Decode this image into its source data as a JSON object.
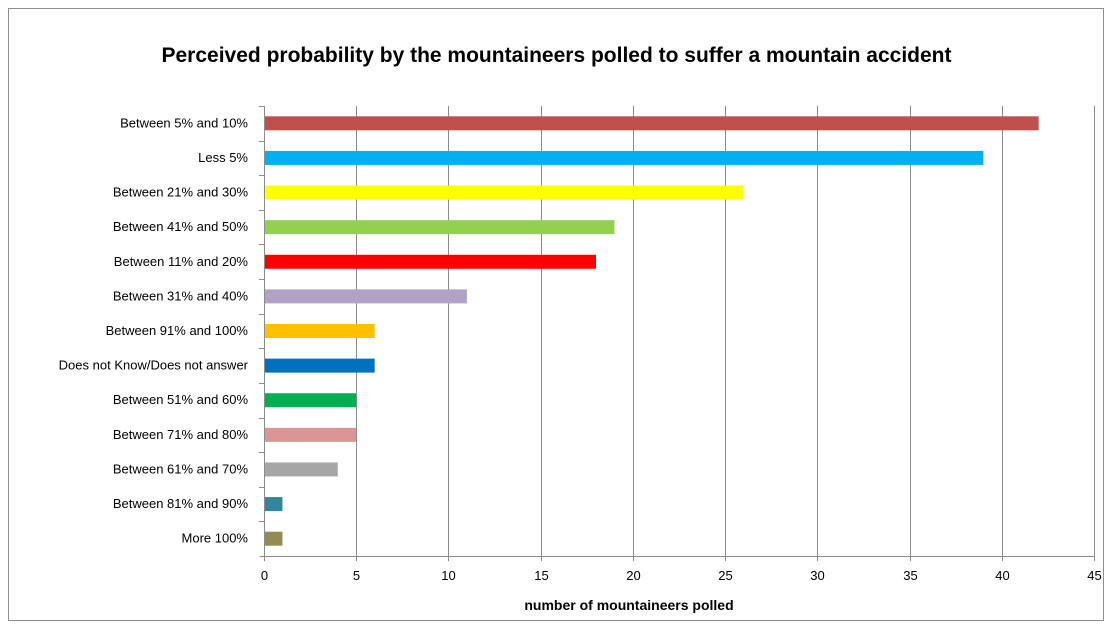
{
  "chart_data": {
    "type": "bar",
    "orientation": "horizontal",
    "title": "Perceived probability by the mountaineers polled to suffer a mountain accident",
    "xlabel": "number of mountaineers polled",
    "ylabel": "",
    "xlim": [
      0,
      45
    ],
    "x_ticks": [
      0,
      5,
      10,
      15,
      20,
      25,
      30,
      35,
      40,
      45
    ],
    "grid": "vertical",
    "legend": "none",
    "categories": [
      "Between 5% and 10%",
      "Less 5%",
      "Between 21% and 30%",
      "Between 41% and 50%",
      "Between 11% and 20%",
      "Between 31% and 40%",
      "Between 91% and 100%",
      "Does not Know/Does not answer",
      "Between 51% and 60%",
      "Between 71% and 80%",
      "Between 61% and 70%",
      "Between 81% and 90%",
      "More 100%"
    ],
    "values": [
      42,
      39,
      26,
      19,
      18,
      11,
      6,
      6,
      5,
      5,
      4,
      1,
      1
    ],
    "colors": [
      "#c0504d",
      "#00b0f0",
      "#ffff00",
      "#92d050",
      "#ff0000",
      "#b2a2c7",
      "#ffc000",
      "#0070c0",
      "#00b050",
      "#d99694",
      "#a6a6a6",
      "#31859c",
      "#948a54"
    ]
  }
}
